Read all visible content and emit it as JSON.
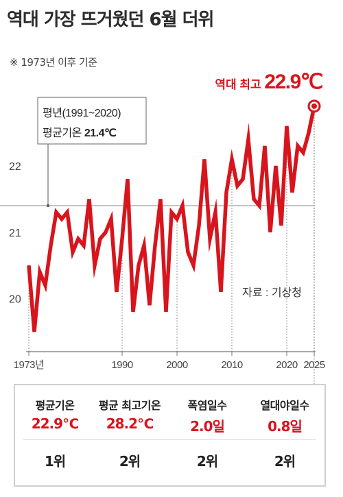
{
  "title": "역대 가장 뜨거웠던 6월 더위",
  "note": "※ 1973년 이후 기준",
  "colors": {
    "accent": "#d8141c",
    "grid": "#bbbbbb",
    "text": "#222222"
  },
  "chart_data": {
    "type": "line",
    "x": [
      1973,
      1974,
      1975,
      1976,
      1977,
      1978,
      1979,
      1980,
      1981,
      1982,
      1983,
      1984,
      1985,
      1986,
      1987,
      1988,
      1989,
      1990,
      1991,
      1992,
      1993,
      1994,
      1995,
      1996,
      1997,
      1998,
      1999,
      2000,
      2001,
      2002,
      2003,
      2004,
      2005,
      2006,
      2007,
      2008,
      2009,
      2010,
      2011,
      2012,
      2013,
      2014,
      2015,
      2016,
      2017,
      2018,
      2019,
      2020,
      2021,
      2022,
      2023,
      2024,
      2025
    ],
    "y": [
      20.5,
      19.5,
      20.4,
      20.2,
      20.8,
      21.3,
      21.2,
      21.3,
      20.7,
      20.9,
      20.8,
      21.5,
      20.5,
      20.9,
      21.0,
      21.2,
      20.1,
      20.9,
      21.8,
      19.8,
      20.5,
      20.8,
      19.9,
      20.8,
      21.5,
      19.8,
      21.3,
      21.2,
      21.4,
      20.7,
      20.5,
      21.1,
      22.1,
      20.9,
      21.3,
      20.1,
      21.6,
      22.1,
      21.7,
      21.8,
      22.4,
      21.5,
      21.4,
      22.3,
      21.0,
      22.0,
      21.1,
      22.6,
      21.6,
      22.3,
      22.2,
      22.5,
      22.9
    ],
    "ylim": [
      19.2,
      22.95
    ],
    "yticks": [
      20,
      21,
      22
    ],
    "xtick_labels": [
      {
        "x": 1973,
        "label": "1973년"
      },
      {
        "x": 1990,
        "label": "1990"
      },
      {
        "x": 2000,
        "label": "2000"
      },
      {
        "x": 2010,
        "label": "2010"
      },
      {
        "x": 2020,
        "label": "2020"
      },
      {
        "x": 2025,
        "label": "2025"
      }
    ],
    "reference": {
      "value": 21.4,
      "label_line1": "평년(1991~2020)",
      "label_line2_prefix": "평균기온 ",
      "label_line2_value": "21.4℃"
    },
    "highlight": {
      "x": 2025,
      "label_prefix": "역대 최고 ",
      "value_label": "22.9℃"
    },
    "source": "자료 : 기상청"
  },
  "stats": [
    {
      "label": "평균기온",
      "value": "22.9℃",
      "rank": "1위"
    },
    {
      "label": "평균 최고기온",
      "value": "28.2℃",
      "rank": "2위"
    },
    {
      "label": "폭염일수",
      "value": "2.0일",
      "rank": "2위"
    },
    {
      "label": "열대야일수",
      "value": "0.8일",
      "rank": "2위"
    }
  ]
}
